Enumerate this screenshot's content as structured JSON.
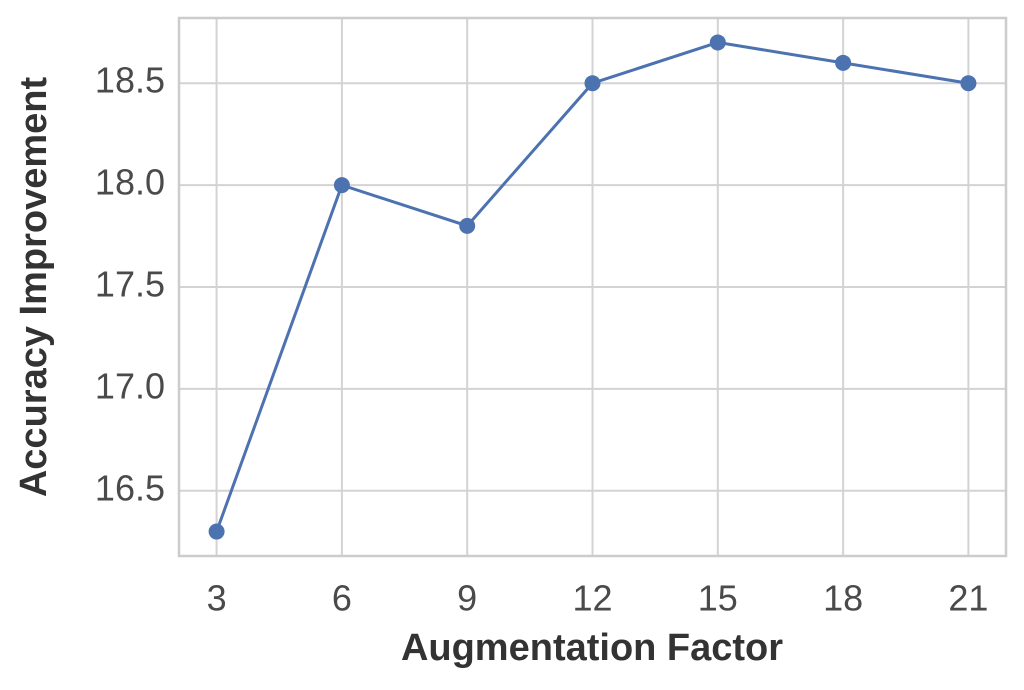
{
  "chart_data": {
    "type": "line",
    "xlabel": "Augmentation Factor",
    "ylabel": "Accuracy Improvement",
    "x": [
      3,
      6,
      9,
      12,
      15,
      18,
      21
    ],
    "series": [
      {
        "color": "#4c72b0",
        "values": [
          16.3,
          18.0,
          17.8,
          18.5,
          18.7,
          18.6,
          18.5
        ]
      }
    ],
    "xlim": [
      2.1,
      21.9
    ],
    "xticks": [
      3,
      6,
      9,
      12,
      15,
      18,
      21
    ],
    "ylim": [
      16.18,
      18.82
    ],
    "yticks": [
      16.5,
      {
        "value": 17,
        "label": "17.0"
      },
      17.5,
      {
        "value": 18,
        "label": "18.0"
      },
      18.5
    ],
    "grid": true
  }
}
